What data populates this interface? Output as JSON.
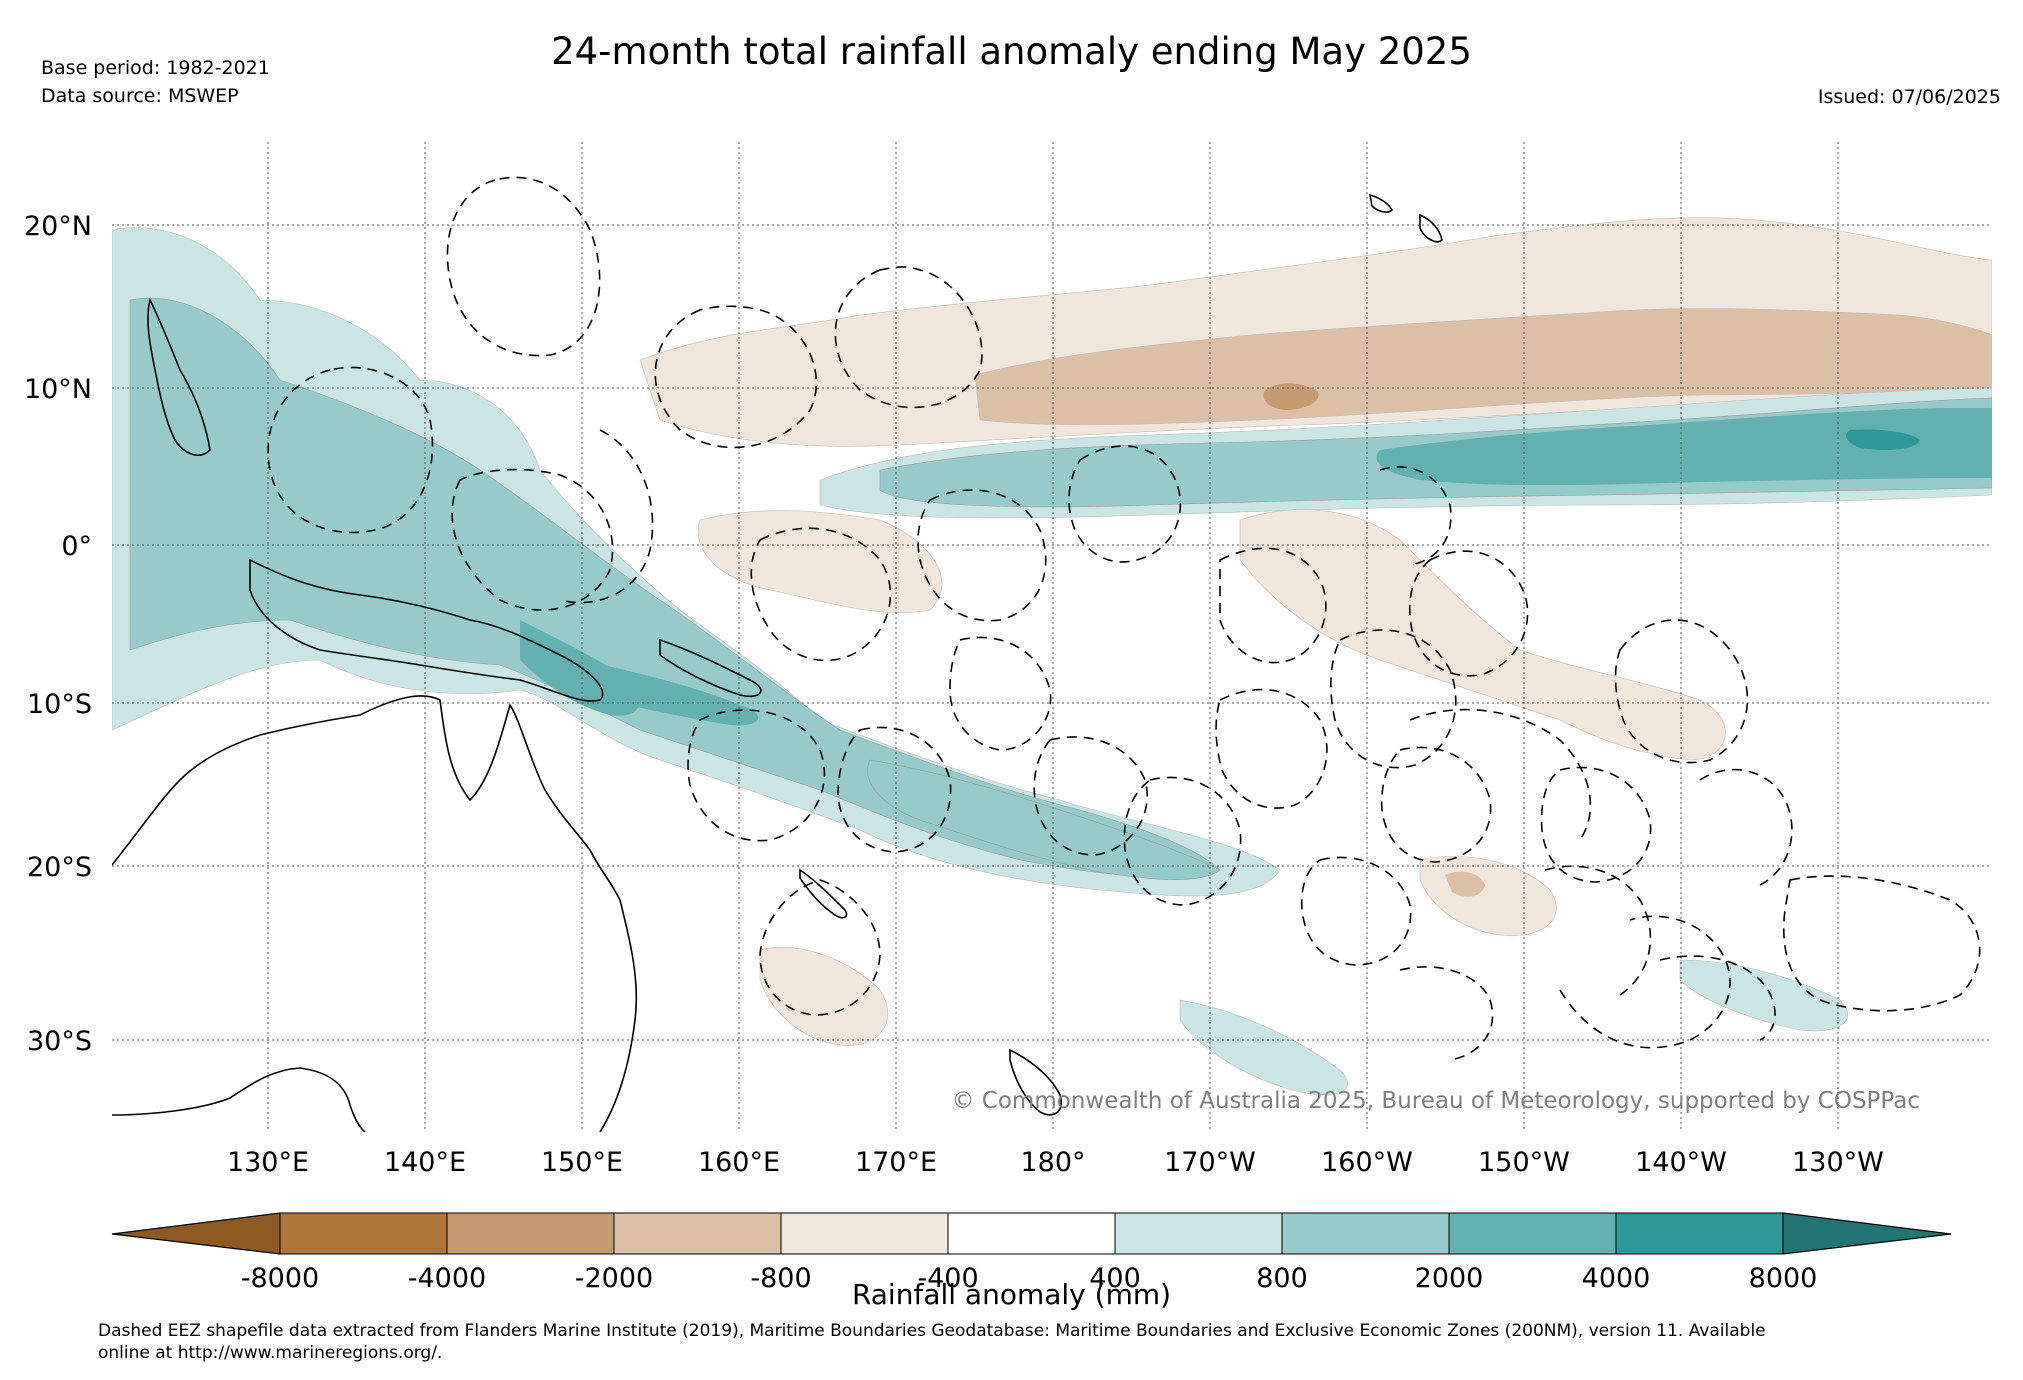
{
  "header": {
    "base_period": "Base period: 1982-2021",
    "data_source": "Data source: MSWEP",
    "title": "24-month total rainfall anomaly ending May 2025",
    "issued": "Issued: 07/06/2025"
  },
  "map": {
    "lat_labels": [
      "20°N",
      "10°N",
      "0°",
      "10°S",
      "20°S",
      "30°S"
    ],
    "lon_labels": [
      "130°E",
      "140°E",
      "150°E",
      "160°E",
      "170°E",
      "180°",
      "170°W",
      "160°W",
      "150°W",
      "140°W",
      "130°W"
    ],
    "credit": "© Commonwealth of Australia 2025, Bureau of Meteorology, supported by COSPPac"
  },
  "colorbar": {
    "label": "Rainfall anomaly (mm)",
    "ticks": [
      "-8000",
      "-4000",
      "-2000",
      "-800",
      "-400",
      "400",
      "800",
      "2000",
      "4000",
      "8000"
    ],
    "colors": [
      "#8c5a22",
      "#ad7539",
      "#c49a70",
      "#dcc0a6",
      "#f1e6dc",
      "#ffffff",
      "#cbe5e4",
      "#97cbcb",
      "#62b0b0",
      "#2e9797",
      "#237574"
    ]
  },
  "footnote": {
    "line1": "Dashed EEZ shapefile data extracted from Flanders Marine Institute (2019), Maritime Boundaries Geodatabase: Maritime Boundaries and Exclusive Economic Zones (200NM), version 11. Available",
    "line2": "online at http://www.marineregions.org/."
  }
}
